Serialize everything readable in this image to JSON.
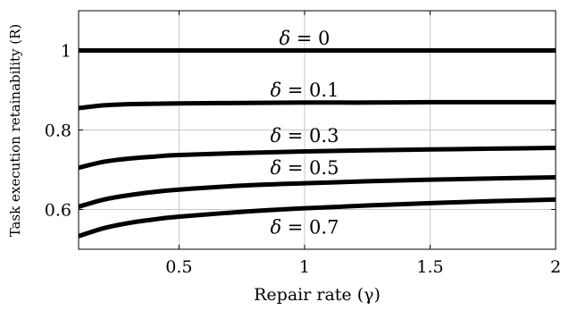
{
  "chart_data": {
    "type": "line",
    "xlabel": "Repair rate (γ)",
    "ylabel": "Task execution retainability (R)",
    "xlim": [
      0.1,
      2.0
    ],
    "ylim": [
      0.5,
      1.1
    ],
    "xticks": [
      0.5,
      1,
      1.5,
      2
    ],
    "yticks": [
      0.6,
      0.8,
      1
    ],
    "xtick_labels": [
      "0.5",
      "1",
      "1.5",
      "2"
    ],
    "ytick_labels": [
      "0.6",
      "0.8",
      "1"
    ],
    "grid": true,
    "series": [
      {
        "name": "δ = 0",
        "name_value": "0",
        "x": [
          0.1,
          0.2,
          0.3,
          0.4,
          0.5,
          0.75,
          1.0,
          1.25,
          1.5,
          1.75,
          2.0
        ],
        "y": [
          1.0,
          1.0,
          1.0,
          1.0,
          1.0,
          1.0,
          1.0,
          1.0,
          1.0,
          1.0,
          1.0
        ],
        "label_at": [
          1.0,
          1.03
        ]
      },
      {
        "name": "δ = 0.1",
        "name_value": "0.1",
        "x": [
          0.1,
          0.2,
          0.3,
          0.4,
          0.5,
          0.75,
          1.0,
          1.25,
          1.5,
          1.75,
          2.0
        ],
        "y": [
          0.855,
          0.862,
          0.865,
          0.866,
          0.867,
          0.868,
          0.869,
          0.869,
          0.87,
          0.87,
          0.87
        ],
        "label_at": [
          1.0,
          0.9
        ]
      },
      {
        "name": "δ = 0.3",
        "name_value": "0.3",
        "x": [
          0.1,
          0.2,
          0.3,
          0.4,
          0.5,
          0.75,
          1.0,
          1.25,
          1.5,
          1.75,
          2.0
        ],
        "y": [
          0.705,
          0.72,
          0.728,
          0.733,
          0.737,
          0.742,
          0.746,
          0.749,
          0.751,
          0.753,
          0.755
        ],
        "label_at": [
          1.0,
          0.785
        ]
      },
      {
        "name": "δ = 0.5",
        "name_value": "0.5",
        "x": [
          0.1,
          0.2,
          0.3,
          0.4,
          0.5,
          0.75,
          1.0,
          1.25,
          1.5,
          1.75,
          2.0
        ],
        "y": [
          0.607,
          0.625,
          0.636,
          0.644,
          0.65,
          0.66,
          0.666,
          0.671,
          0.675,
          0.678,
          0.681
        ],
        "label_at": [
          1.0,
          0.705
        ]
      },
      {
        "name": "δ = 0.7",
        "name_value": "0.7",
        "x": [
          0.1,
          0.2,
          0.3,
          0.4,
          0.5,
          0.75,
          1.0,
          1.25,
          1.5,
          1.75,
          2.0
        ],
        "y": [
          0.533,
          0.553,
          0.566,
          0.575,
          0.582,
          0.594,
          0.603,
          0.61,
          0.616,
          0.621,
          0.625
        ],
        "label_at": [
          1.0,
          0.555
        ]
      }
    ]
  }
}
